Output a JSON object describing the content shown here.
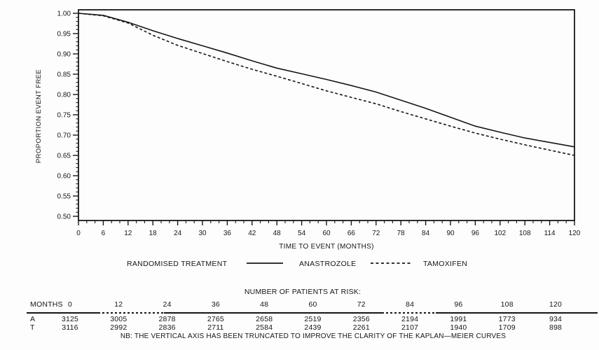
{
  "chart_data": {
    "type": "line",
    "title": "",
    "xlabel": "TIME TO EVENT (MONTHS)",
    "ylabel": "PROPORTION EVENT FREE",
    "xlim": [
      0,
      120
    ],
    "ylim": [
      0.5,
      1.0
    ],
    "x_major_step": 6,
    "x_minor_step": 2,
    "y_major_step": 0.05,
    "y_minor_step": 0.01,
    "grid": false,
    "legend_position": "bottom",
    "legend_title": "RANDOMISED TREATMENT",
    "x": [
      0,
      6,
      12,
      18,
      24,
      30,
      36,
      42,
      48,
      54,
      60,
      66,
      72,
      78,
      84,
      90,
      96,
      102,
      108,
      114,
      120
    ],
    "series": [
      {
        "name": "ANASTROZOLE",
        "line_style": "solid",
        "values": [
          1.0,
          0.995,
          0.978,
          0.957,
          0.938,
          0.92,
          0.902,
          0.883,
          0.865,
          0.851,
          0.837,
          0.822,
          0.806,
          0.786,
          0.766,
          0.744,
          0.722,
          0.707,
          0.693,
          0.682,
          0.671
        ]
      },
      {
        "name": "TAMOXIFEN",
        "line_style": "dashed",
        "values": [
          1.0,
          0.994,
          0.976,
          0.946,
          0.921,
          0.901,
          0.881,
          0.862,
          0.845,
          0.827,
          0.809,
          0.793,
          0.777,
          0.758,
          0.74,
          0.722,
          0.705,
          0.69,
          0.676,
          0.663,
          0.65
        ]
      }
    ]
  },
  "risk_table": {
    "title": "NUMBER OF PATIENTS AT RISK:",
    "months_label": "MONTHS",
    "months": [
      "0",
      "12",
      "24",
      "36",
      "48",
      "60",
      "72",
      "84",
      "96",
      "108",
      "120"
    ],
    "rows": [
      {
        "label": "A",
        "values": [
          "3125",
          "3005",
          "2878",
          "2765",
          "2658",
          "2519",
          "2356",
          "2194",
          "1991",
          "1773",
          "934"
        ]
      },
      {
        "label": "T",
        "values": [
          "3116",
          "2992",
          "2836",
          "2711",
          "2584",
          "2439",
          "2261",
          "2107",
          "1940",
          "1709",
          "898"
        ]
      }
    ],
    "note": "NB: THE VERTICAL AXIS HAS BEEN TRUNCATED TO IMPROVE THE CLARITY OF THE KAPLAN—MEIER CURVES"
  },
  "colors": {
    "ink": "#161616",
    "background": "#fdfdfd"
  }
}
